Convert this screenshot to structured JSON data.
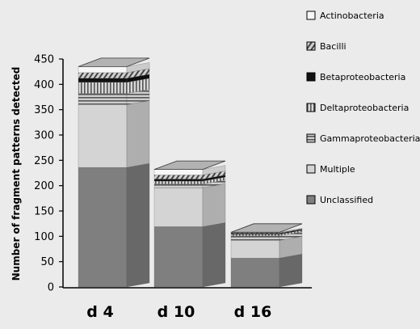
{
  "chart_data": {
    "type": "bar",
    "stacked": true,
    "three_d": true,
    "categories": [
      "d 4",
      "d 10",
      "d 16"
    ],
    "ylabel": "Number of fragment patterns detected",
    "xlabel": "",
    "ylim": [
      0,
      450
    ],
    "yticks": [
      0,
      50,
      100,
      150,
      200,
      250,
      300,
      350,
      400,
      450
    ],
    "legend_position": "right",
    "grid": false,
    "series": [
      {
        "name": "Unclassified",
        "values": [
          236,
          119,
          57
        ],
        "color": "#7f7f7f",
        "pattern": "solid"
      },
      {
        "name": "Multiple",
        "values": [
          124,
          77,
          35
        ],
        "color": "#d4d4d4",
        "pattern": "solid"
      },
      {
        "name": "Gammaproteobacteria",
        "values": [
          22,
          7,
          9
        ],
        "color": "#b0b0b0",
        "pattern": "horizontal-stripes"
      },
      {
        "name": "Deltaproteobacteria",
        "values": [
          22,
          6,
          3
        ],
        "color": "#9c9c9c",
        "pattern": "vertical-stripes"
      },
      {
        "name": "Betaproteobacteria",
        "values": [
          8,
          4,
          2
        ],
        "color": "#111111",
        "pattern": "solid"
      },
      {
        "name": "Bacilli",
        "values": [
          11,
          8,
          1
        ],
        "color": "#8a8a8a",
        "pattern": "diagonal-stripes"
      },
      {
        "name": "Actinobacteria",
        "values": [
          12,
          11,
          1
        ],
        "color": "#f7f7f7",
        "pattern": "solid"
      }
    ]
  }
}
